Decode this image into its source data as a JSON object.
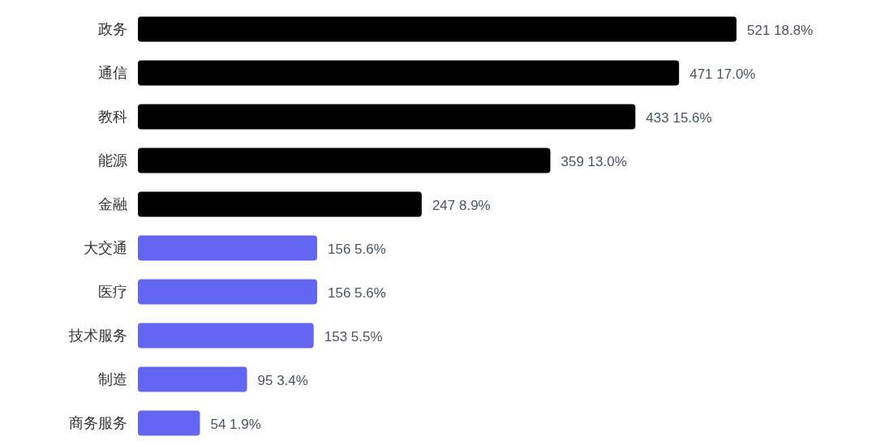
{
  "chart_data": {
    "type": "bar",
    "orientation": "horizontal",
    "categories": [
      "政务",
      "通信",
      "教科",
      "能源",
      "金融",
      "大交通",
      "医疗",
      "技术服务",
      "制造",
      "商务服务"
    ],
    "values": [
      521,
      471,
      433,
      359,
      247,
      156,
      156,
      153,
      95,
      54
    ],
    "colors": [
      "#000000",
      "#000000",
      "#000000",
      "#000000",
      "#000000",
      "#6366f1",
      "#6366f1",
      "#6366f1",
      "#6366f1",
      "#6366f1"
    ],
    "value_labels": [
      "521 18.8%",
      "471 17.0%",
      "433 15.6%",
      "359 13.0%",
      "247 8.9%",
      "156 5.6%",
      "156 5.6%",
      "153 5.5%",
      "95 3.4%",
      "54 1.9%"
    ]
  }
}
